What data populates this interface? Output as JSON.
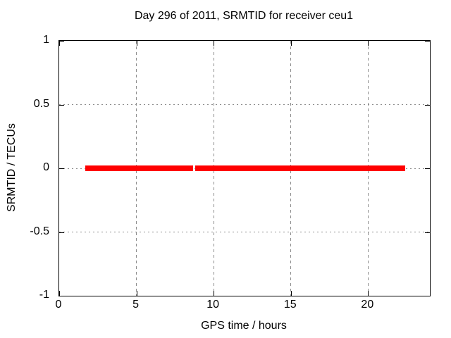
{
  "chart_data": {
    "type": "line",
    "title": "Day 296 of 2011, SRMTID for receiver ceu1",
    "xlabel": "GPS time / hours",
    "ylabel": "SRMTID / TECUs",
    "xlim": [
      0,
      24
    ],
    "ylim": [
      -1,
      1
    ],
    "x_ticks": [
      0,
      5,
      10,
      15,
      20
    ],
    "x_tick_labels": [
      "0",
      "5",
      "10",
      "15",
      "20"
    ],
    "y_ticks": [
      -1,
      -0.5,
      0,
      0.5,
      1
    ],
    "y_tick_labels": [
      "-1",
      "-0.5",
      "0",
      "0.5",
      "1"
    ],
    "grid": true,
    "legend": "none",
    "series": [
      {
        "name": "SRMTID",
        "color": "#ff0000",
        "y_value": 0,
        "segments_x": [
          [
            1.69,
            8.67
          ],
          [
            8.81,
            22.4
          ]
        ]
      }
    ],
    "colors": {
      "background": "#ffffff",
      "axis": "#000000",
      "grid": "#8c8c8c",
      "text": "#000000"
    }
  }
}
